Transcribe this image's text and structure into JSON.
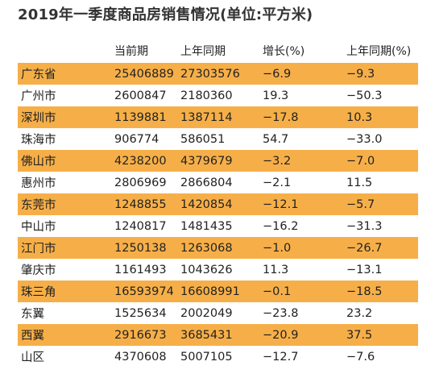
{
  "title": "2019年一季度商品房销售情况(单位:平方米)",
  "columns": [
    "",
    "当前期",
    "上年同期",
    "增长(%)",
    "上年同期(%)"
  ],
  "rows": [
    {
      "region": "广东省",
      "current": "25406889",
      "last_year": "27303576",
      "growth": "−6.9",
      "last_growth": "−9.3",
      "highlight": true
    },
    {
      "region": "广州市",
      "current": "2600847",
      "last_year": "2180360",
      "growth": "19.3",
      "last_growth": "−50.3",
      "highlight": false
    },
    {
      "region": "深圳市",
      "current": "1139881",
      "last_year": "1387114",
      "growth": "−17.8",
      "last_growth": "10.3",
      "highlight": true
    },
    {
      "region": "珠海市",
      "current": "906774",
      "last_year": "586051",
      "growth": "54.7",
      "last_growth": "−33.0",
      "highlight": false
    },
    {
      "region": "佛山市",
      "current": "4238200",
      "last_year": "4379679",
      "growth": "−3.2",
      "last_growth": "−7.0",
      "highlight": true
    },
    {
      "region": "惠州市",
      "current": "2806969",
      "last_year": "2866804",
      "growth": "−2.1",
      "last_growth": "11.5",
      "highlight": false
    },
    {
      "region": "东莞市",
      "current": "1248855",
      "last_year": "1420854",
      "growth": "−12.1",
      "last_growth": "−5.7",
      "highlight": true
    },
    {
      "region": "中山市",
      "current": "1240817",
      "last_year": "1481435",
      "growth": "−16.2",
      "last_growth": "−31.3",
      "highlight": false
    },
    {
      "region": "江门市",
      "current": "1250138",
      "last_year": "1263068",
      "growth": "−1.0",
      "last_growth": "−26.7",
      "highlight": true
    },
    {
      "region": "肇庆市",
      "current": "1161493",
      "last_year": "1043626",
      "growth": "11.3",
      "last_growth": "−13.1",
      "highlight": false
    },
    {
      "region": "珠三角",
      "current": "16593974",
      "last_year": "16608991",
      "growth": "−0.1",
      "last_growth": "−18.5",
      "highlight": true
    },
    {
      "region": "东翼",
      "current": "1525634",
      "last_year": "2002049",
      "growth": "−23.8",
      "last_growth": "23.2",
      "highlight": false
    },
    {
      "region": "西翼",
      "current": "2916673",
      "last_year": "3685431",
      "growth": "−20.9",
      "last_growth": "37.5",
      "highlight": true
    },
    {
      "region": "山区",
      "current": "4370608",
      "last_year": "5007105",
      "growth": "−12.7",
      "last_growth": "−7.6",
      "highlight": false
    }
  ],
  "highlight_color": "#F6AF48"
}
